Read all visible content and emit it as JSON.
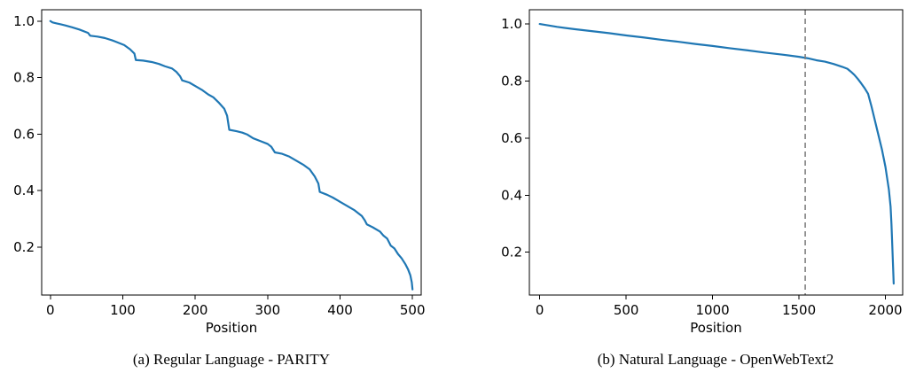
{
  "chart_data": [
    {
      "type": "line",
      "caption": "(a) Regular Language - PARITY",
      "title": "",
      "xlabel": "Position",
      "ylabel": "",
      "xlim": [
        -12,
        512
      ],
      "ylim": [
        0.03,
        1.04
      ],
      "xticks": [
        0,
        100,
        200,
        300,
        400,
        500
      ],
      "xtick_labels": [
        "0",
        "100",
        "200",
        "300",
        "400",
        "500"
      ],
      "yticks": [
        0.2,
        0.4,
        0.6,
        0.8,
        1.0
      ],
      "ytick_labels": [
        "0.2",
        "0.4",
        "0.6",
        "0.8",
        "1.0"
      ],
      "grid": false,
      "series": [
        {
          "color": "#1f77b4",
          "x": [
            0,
            3,
            8,
            15,
            20,
            30,
            40,
            52,
            55,
            65,
            75,
            85,
            92,
            102,
            110,
            116,
            118,
            128,
            140,
            150,
            158,
            168,
            174,
            179,
            182,
            192,
            200,
            210,
            218,
            225,
            233,
            240,
            244,
            247,
            257,
            265,
            272,
            280,
            290,
            300,
            305,
            310,
            320,
            330,
            340,
            350,
            358,
            365,
            370,
            372,
            382,
            390,
            400,
            410,
            420,
            430,
            434,
            437,
            445,
            455,
            460,
            465,
            470,
            475,
            480,
            485,
            490,
            494,
            497,
            499,
            500
          ],
          "y": [
            1.0,
            0.995,
            0.992,
            0.988,
            0.985,
            0.978,
            0.97,
            0.958,
            0.948,
            0.945,
            0.94,
            0.932,
            0.925,
            0.915,
            0.9,
            0.885,
            0.862,
            0.86,
            0.855,
            0.848,
            0.84,
            0.832,
            0.82,
            0.805,
            0.79,
            0.782,
            0.77,
            0.755,
            0.74,
            0.73,
            0.71,
            0.69,
            0.665,
            0.615,
            0.61,
            0.605,
            0.598,
            0.585,
            0.575,
            0.565,
            0.555,
            0.535,
            0.53,
            0.52,
            0.505,
            0.49,
            0.475,
            0.45,
            0.425,
            0.395,
            0.385,
            0.375,
            0.36,
            0.345,
            0.33,
            0.31,
            0.295,
            0.28,
            0.27,
            0.255,
            0.24,
            0.23,
            0.205,
            0.195,
            0.175,
            0.16,
            0.14,
            0.12,
            0.1,
            0.075,
            0.05
          ]
        }
      ],
      "reference_line_x": null
    },
    {
      "type": "line",
      "caption": "(b) Natural Language - OpenWebText2",
      "title": "",
      "xlabel": "Position",
      "ylabel": "",
      "xlim": [
        -60,
        2100
      ],
      "ylim": [
        0.05,
        1.05
      ],
      "xticks": [
        0,
        500,
        1000,
        1500,
        2000
      ],
      "xtick_labels": [
        "0",
        "500",
        "1000",
        "1500",
        "2000"
      ],
      "yticks": [
        0.2,
        0.4,
        0.6,
        0.8,
        1.0
      ],
      "ytick_labels": [
        "0.2",
        "0.4",
        "0.6",
        "0.8",
        "1.0"
      ],
      "grid": false,
      "series": [
        {
          "color": "#1f77b4",
          "x": [
            0,
            100,
            200,
            300,
            400,
            500,
            600,
            700,
            800,
            900,
            1000,
            1100,
            1200,
            1300,
            1400,
            1500,
            1550,
            1600,
            1650,
            1700,
            1750,
            1780,
            1800,
            1820,
            1840,
            1860,
            1880,
            1900,
            1920,
            1940,
            1960,
            1980,
            2000,
            2010,
            2020,
            2030,
            2035,
            2040,
            2045,
            2048
          ],
          "y": [
            1.0,
            0.99,
            0.982,
            0.975,
            0.968,
            0.96,
            0.953,
            0.945,
            0.938,
            0.93,
            0.923,
            0.915,
            0.908,
            0.9,
            0.893,
            0.885,
            0.88,
            0.873,
            0.868,
            0.86,
            0.85,
            0.843,
            0.833,
            0.822,
            0.808,
            0.792,
            0.775,
            0.755,
            0.71,
            0.66,
            0.61,
            0.56,
            0.5,
            0.46,
            0.42,
            0.36,
            0.3,
            0.22,
            0.14,
            0.09
          ]
        }
      ],
      "reference_line_x": 1536
    }
  ]
}
